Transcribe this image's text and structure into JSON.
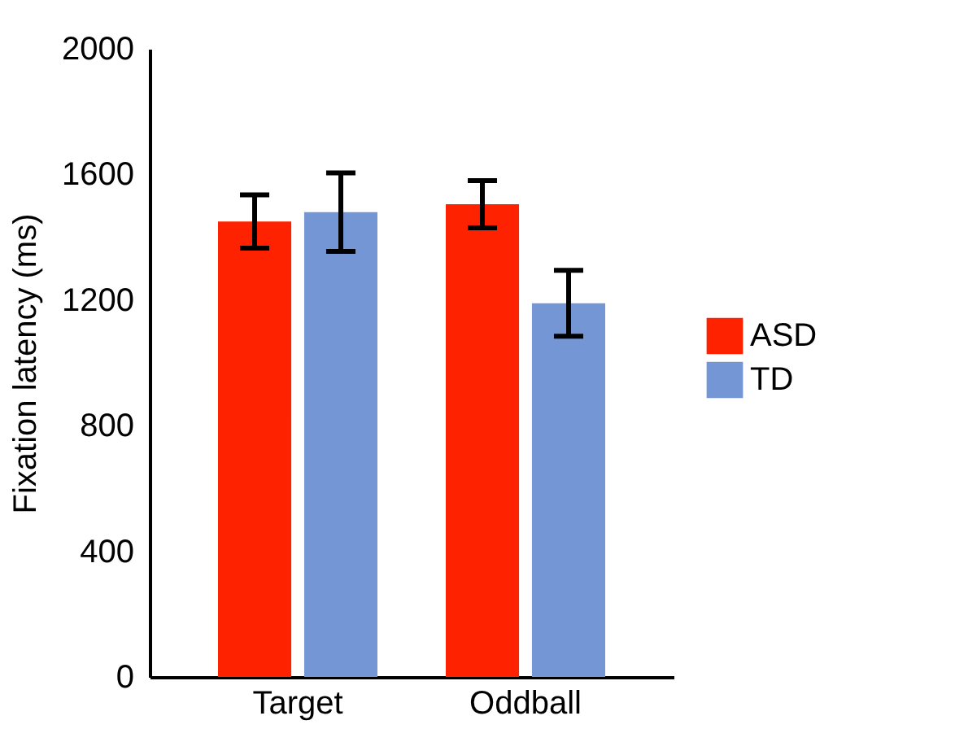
{
  "chart_data": {
    "type": "bar",
    "ylabel": "Fixation latency (ms)",
    "categories": [
      "Target",
      "Oddball"
    ],
    "series": [
      {
        "name": "ASD",
        "color": "#ff2200",
        "values": [
          1450,
          1505
        ],
        "errors": [
          85,
          75
        ]
      },
      {
        "name": "TD",
        "color": "#7596d4",
        "values": [
          1480,
          1190
        ],
        "errors": [
          125,
          105
        ]
      }
    ],
    "ylim": [
      0,
      2000
    ],
    "yticks": [
      0,
      400,
      800,
      1200,
      1600,
      2000
    ],
    "grid": false,
    "legend": "right"
  }
}
